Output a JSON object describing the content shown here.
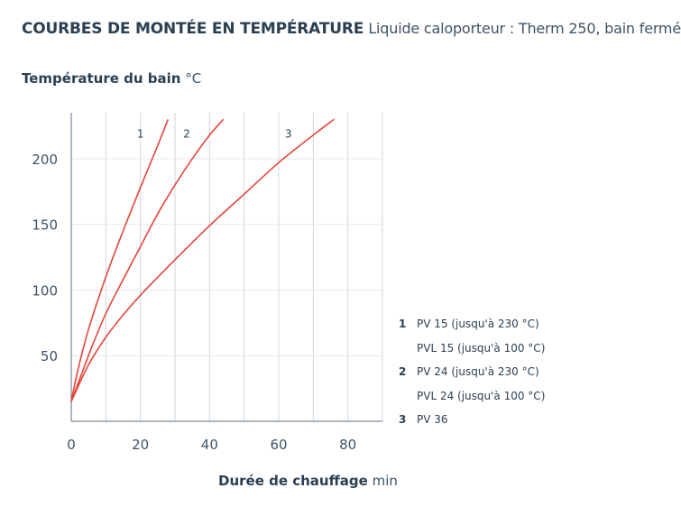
{
  "header": {
    "title": "COURBES DE MONTÉE EN TEMPÉRATURE",
    "subtitle": "Liquide caloporteur : Therm 250, bain fermé"
  },
  "chart_data": {
    "type": "line",
    "ylabel": "Température du bain",
    "yunit": "°C",
    "xlabel": "Durée de chauffage",
    "xunit": "min",
    "xlim": [
      0,
      90
    ],
    "ylim": [
      0,
      235
    ],
    "xticks": [
      0,
      20,
      40,
      60,
      80
    ],
    "yticks": [
      50,
      100,
      150,
      200
    ],
    "grid": "vertical",
    "line_color": "#e5453b",
    "series": [
      {
        "name": "1",
        "x": [
          0,
          2,
          5,
          10,
          15,
          20,
          25,
          28
        ],
        "y": [
          15,
          40,
          70,
          110,
          145,
          178,
          210,
          230
        ]
      },
      {
        "name": "2",
        "x": [
          0,
          3,
          6,
          10,
          15,
          20,
          25,
          30,
          35,
          40,
          44
        ],
        "y": [
          15,
          36,
          57,
          82,
          108,
          133,
          158,
          180,
          200,
          218,
          230
        ]
      },
      {
        "name": "3",
        "x": [
          0,
          5,
          10,
          15,
          20,
          30,
          40,
          50,
          60,
          70,
          76
        ],
        "y": [
          15,
          43,
          64,
          81,
          96,
          123,
          149,
          173,
          197,
          218,
          230
        ]
      }
    ],
    "legend": [
      {
        "num": "1",
        "text": "PV 15 (jusqu'à 230 °C)"
      },
      {
        "num": "",
        "text": "PVL 15 (jusqu'à 100 °C)"
      },
      {
        "num": "2",
        "text": "PV 24 (jusqu'à 230 °C)"
      },
      {
        "num": "",
        "text": "PVL 24 (jusqu'à 100 °C)"
      },
      {
        "num": "3",
        "text": "PV 36"
      }
    ]
  }
}
